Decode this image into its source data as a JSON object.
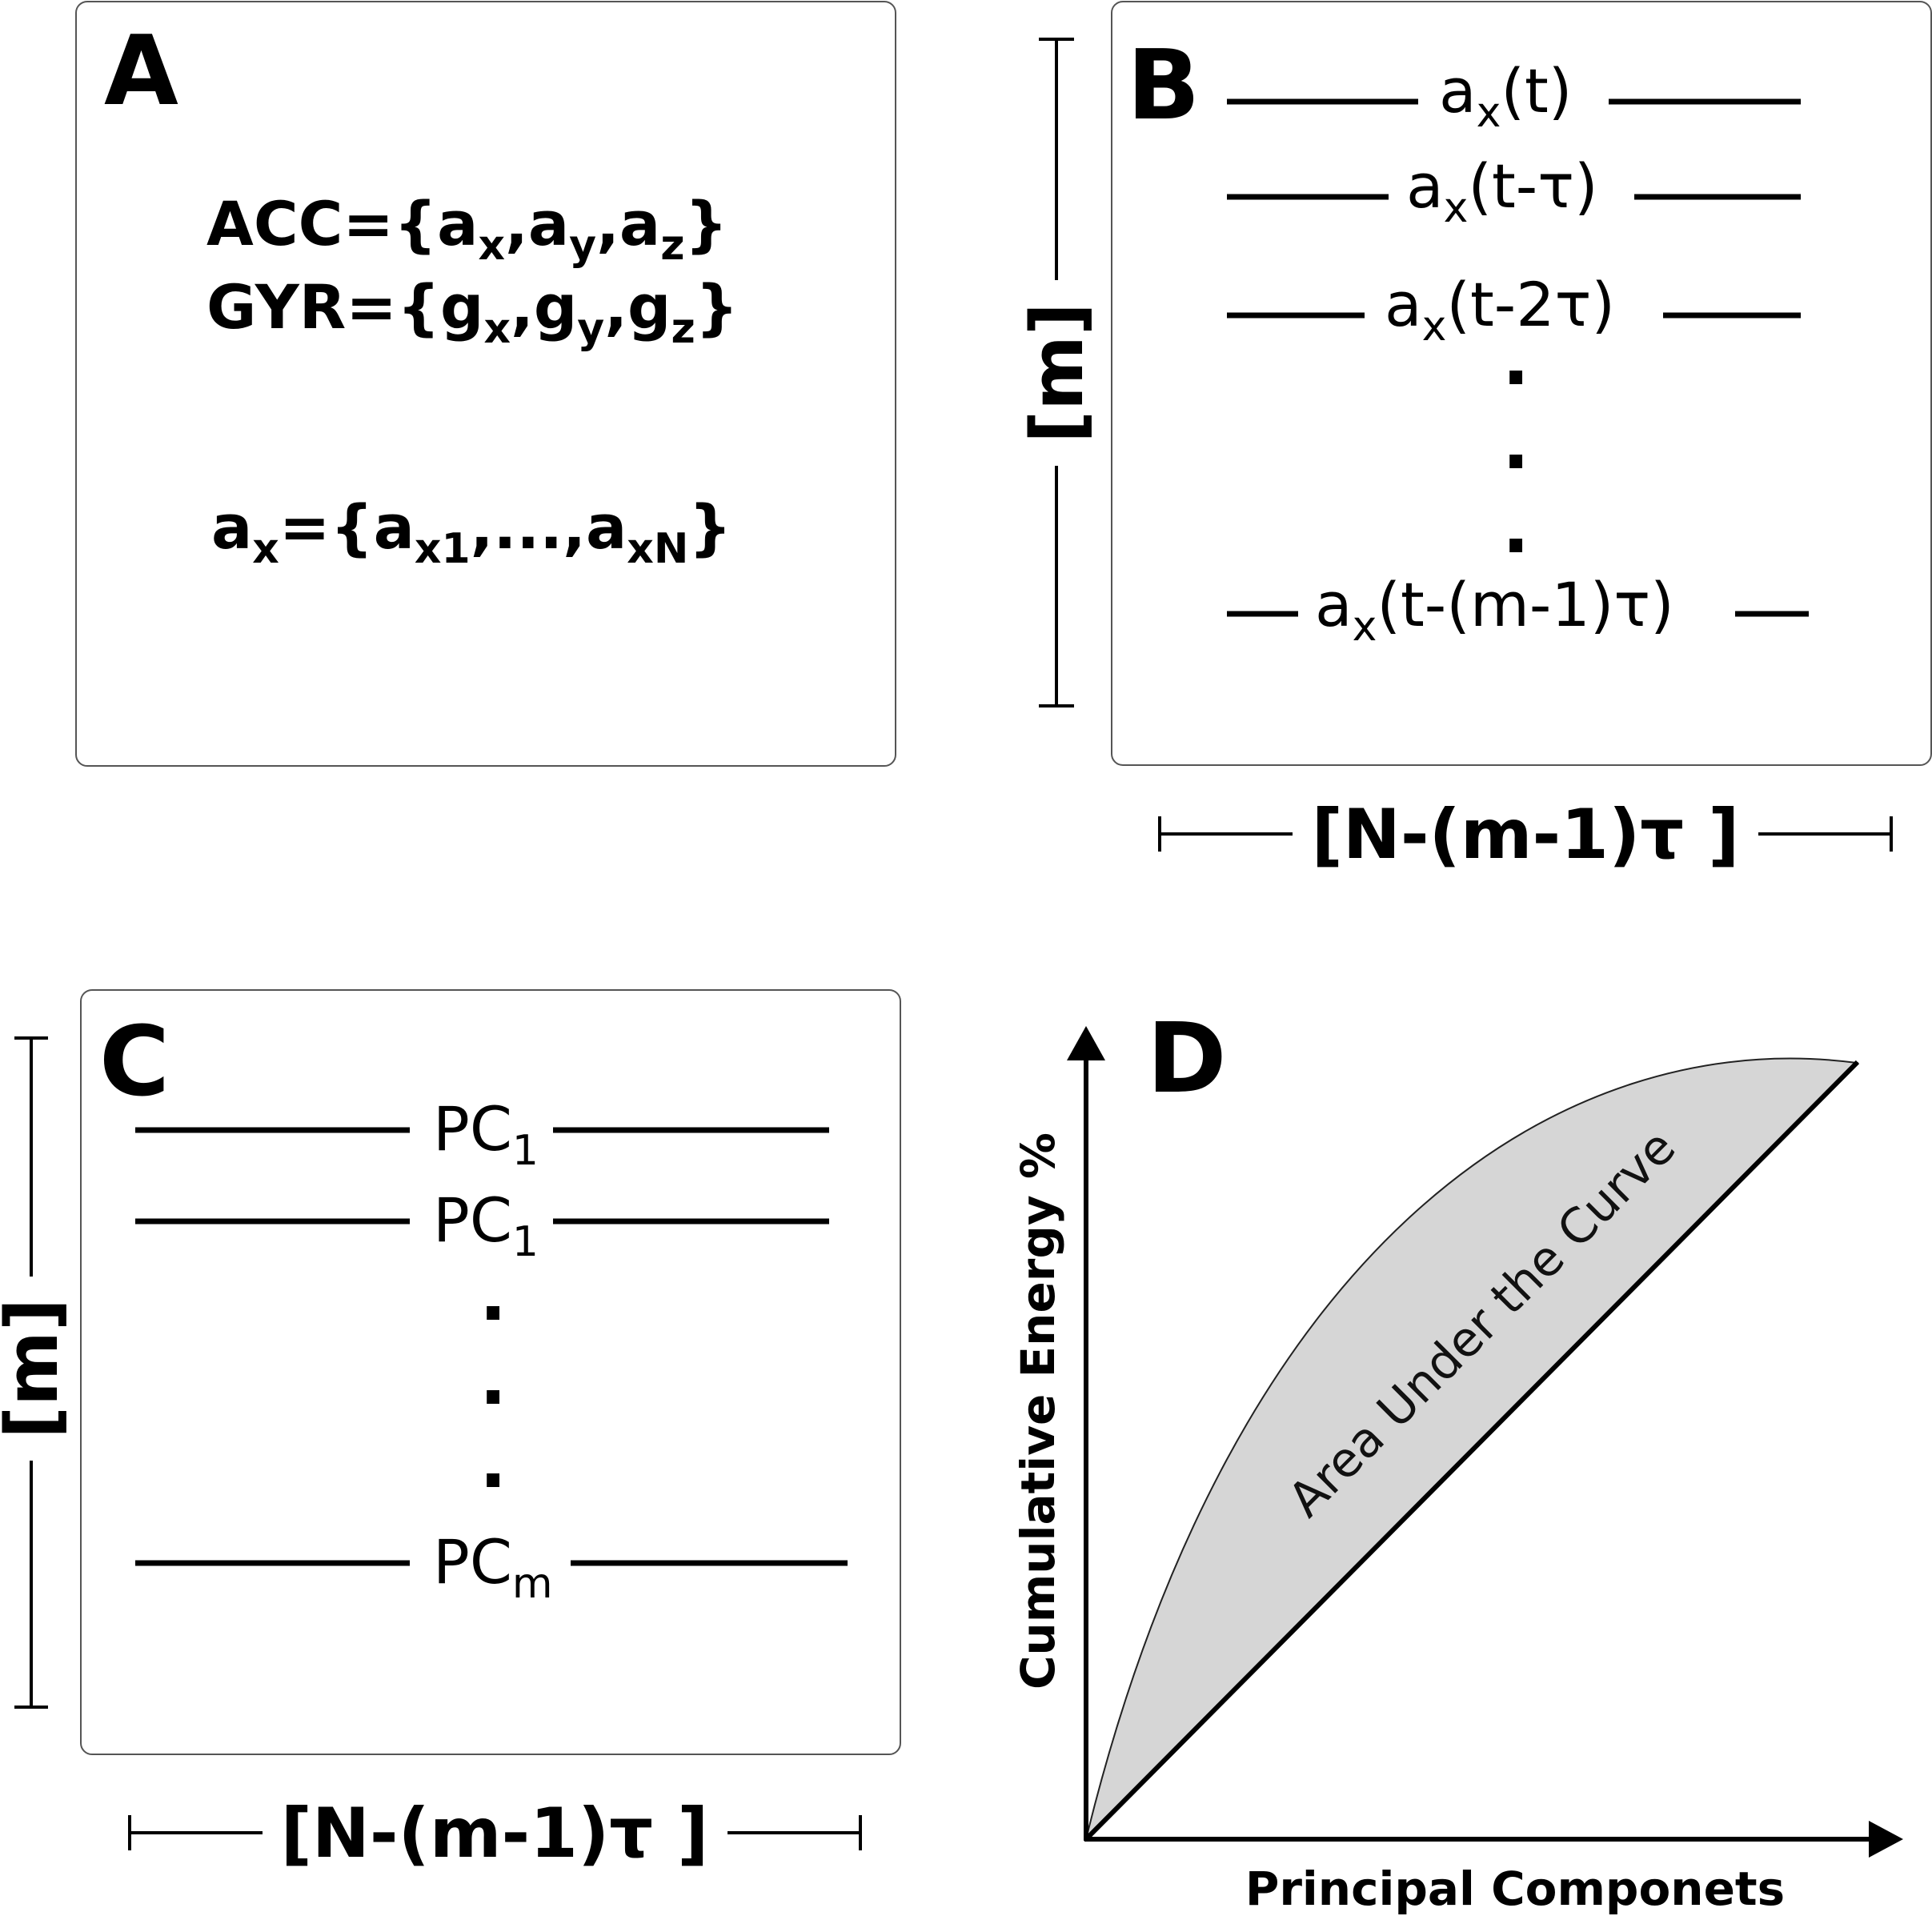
{
  "panel_a": {
    "letter": "A",
    "acc_prefix": "ACC={a",
    "acc_sub_x": "x",
    "acc_mid1": ",a",
    "acc_sub_y": "y",
    "acc_mid2": ",a",
    "acc_sub_z": "z",
    "acc_suffix": "}",
    "gyr_prefix": "GYR={g",
    "gyr_sub_x": "x",
    "gyr_mid1": ",g",
    "gyr_sub_y": "y",
    "gyr_mid2": ",g",
    "gyr_sub_z": "z",
    "gyr_suffix": "}",
    "ax_base": "a",
    "ax_sub": "x",
    "ax_eq": "={a",
    "ax_sub1": "x1",
    "ax_mid": ",...,a",
    "ax_subN": "xN",
    "ax_close": "}"
  },
  "panel_b": {
    "letter": "B",
    "rows": [
      {
        "base": "a",
        "sub": "x",
        "arg": "(t)"
      },
      {
        "base": "a",
        "sub": "x",
        "arg": "(t-τ)"
      },
      {
        "base": "a",
        "sub": "x",
        "arg": "(t-2τ)"
      },
      {
        "base": "a",
        "sub": "x",
        "arg": "(t-(m-1)τ)"
      }
    ],
    "dot": ".",
    "side_label": "[m]",
    "bottom_label": "[N-(m-1)τ ]"
  },
  "panel_c": {
    "letter": "C",
    "rows": [
      {
        "base": "PC",
        "sub": "1"
      },
      {
        "base": "PC",
        "sub": "1"
      },
      {
        "base": "PC",
        "sub": "m"
      }
    ],
    "dot": ".",
    "side_label": "[m]",
    "bottom_label": "[N-(m-1)τ ]"
  },
  "panel_d": {
    "letter": "D",
    "xlabel": "Principal Componets",
    "ylabel": "Cumulative Energy %",
    "area_label": "Area Under the Curve",
    "fill_color": "#d6d6d6"
  }
}
